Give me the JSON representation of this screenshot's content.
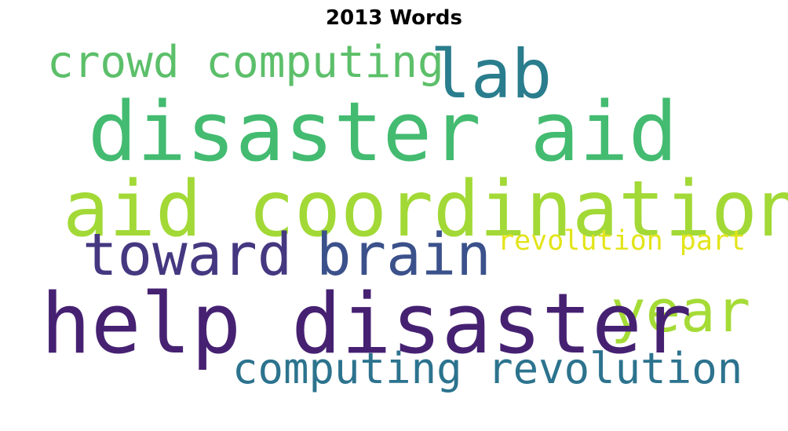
{
  "title": "2013 Words",
  "words": [
    {
      "id": "crowd-computing",
      "text": "crowd computing",
      "color": "#5cbf6a"
    },
    {
      "id": "lab",
      "text": "lab",
      "color": "#2a7d8c"
    },
    {
      "id": "disaster-aid",
      "text": "disaster aid",
      "color": "#43bb70"
    },
    {
      "id": "aid-coordination",
      "text": "aid coordination",
      "color": "#a2d936"
    },
    {
      "id": "toward",
      "text": "toward",
      "color": "#453780"
    },
    {
      "id": "brain",
      "text": "brain",
      "color": "#3b518b"
    },
    {
      "id": "revolution-part",
      "text": "revolution part",
      "color": "#e3e419"
    },
    {
      "id": "year",
      "text": "year",
      "color": "#a5db36"
    },
    {
      "id": "help-disaster",
      "text": "help disaster",
      "color": "#462172"
    },
    {
      "id": "computing-revolution",
      "text": "computing revolution",
      "color": "#2c738e"
    }
  ]
}
